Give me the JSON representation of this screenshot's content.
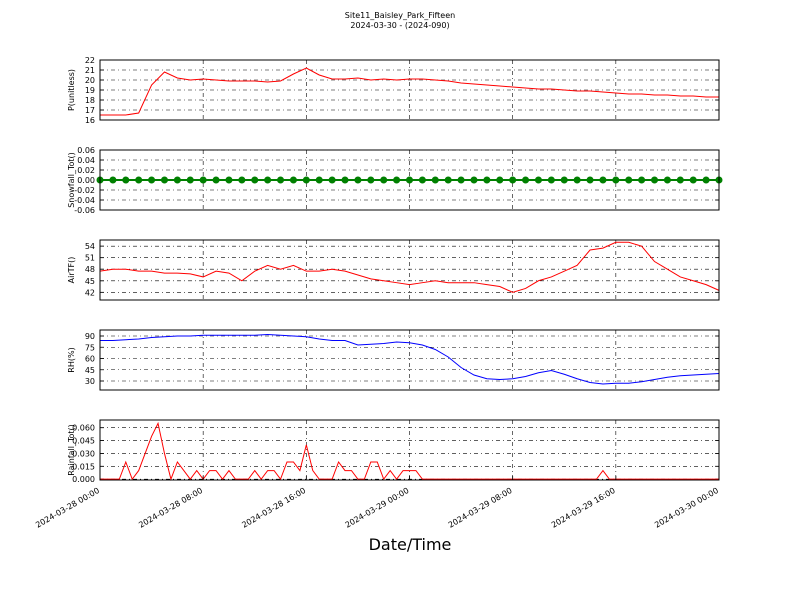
{
  "title": "Site11_Baisley_Park_Fifteen",
  "subtitle": "2024-03-30 - (2024-090)",
  "xlabel": "Date/Time",
  "xlim": [
    "2024-03-28 00:00",
    "2024-03-30 00:00"
  ],
  "xticks": [
    "2024-03-28 00:00",
    "2024-03-28 08:00",
    "2024-03-28 16:00",
    "2024-03-29 00:00",
    "2024-03-29 08:00",
    "2024-03-29 16:00",
    "2024-03-30 00:00"
  ],
  "chart_data": [
    {
      "type": "line",
      "ylabel": "P(unitless)",
      "color": "#ff0000",
      "grid": true,
      "markers": false,
      "ylim": [
        16,
        22
      ],
      "yticks": [
        16,
        17,
        18,
        19,
        20,
        21,
        22
      ],
      "x": [
        "2024-03-28 00:00",
        "2024-03-28 01:00",
        "2024-03-28 02:00",
        "2024-03-28 03:00",
        "2024-03-28 04:00",
        "2024-03-28 05:00",
        "2024-03-28 06:00",
        "2024-03-28 07:00",
        "2024-03-28 08:00",
        "2024-03-28 09:00",
        "2024-03-28 10:00",
        "2024-03-28 11:00",
        "2024-03-28 12:00",
        "2024-03-28 13:00",
        "2024-03-28 14:00",
        "2024-03-28 15:00",
        "2024-03-28 16:00",
        "2024-03-28 17:00",
        "2024-03-28 18:00",
        "2024-03-28 19:00",
        "2024-03-28 20:00",
        "2024-03-28 21:00",
        "2024-03-28 22:00",
        "2024-03-28 23:00",
        "2024-03-29 00:00",
        "2024-03-29 01:00",
        "2024-03-29 02:00",
        "2024-03-29 03:00",
        "2024-03-29 04:00",
        "2024-03-29 05:00",
        "2024-03-29 06:00",
        "2024-03-29 07:00",
        "2024-03-29 08:00",
        "2024-03-29 09:00",
        "2024-03-29 10:00",
        "2024-03-29 11:00",
        "2024-03-29 12:00",
        "2024-03-29 13:00",
        "2024-03-29 14:00",
        "2024-03-29 15:00",
        "2024-03-29 16:00",
        "2024-03-29 17:00",
        "2024-03-29 18:00",
        "2024-03-29 19:00",
        "2024-03-29 20:00",
        "2024-03-29 21:00",
        "2024-03-29 22:00",
        "2024-03-29 23:00",
        "2024-03-30 00:00"
      ],
      "values": [
        16.5,
        16.5,
        16.5,
        16.7,
        19.5,
        20.8,
        20.2,
        20.0,
        20.1,
        20.0,
        19.9,
        19.9,
        19.9,
        19.8,
        19.9,
        20.6,
        21.2,
        20.5,
        20.1,
        20.1,
        20.2,
        20.0,
        20.1,
        20.0,
        20.1,
        20.1,
        20.0,
        19.9,
        19.7,
        19.6,
        19.5,
        19.4,
        19.3,
        19.2,
        19.1,
        19.1,
        19.0,
        18.9,
        18.9,
        18.8,
        18.7,
        18.6,
        18.6,
        18.5,
        18.5,
        18.4,
        18.4,
        18.3,
        18.3
      ]
    },
    {
      "type": "line",
      "ylabel": "Snowfall_Tot()",
      "color": "#008000",
      "grid": true,
      "markers": true,
      "ylim": [
        -0.06,
        0.06
      ],
      "yticks": [
        -0.06,
        -0.04,
        -0.02,
        {
          "value": 0,
          "label": "0.00"
        },
        0.02,
        0.04,
        0.06
      ],
      "x": [
        "2024-03-28 00:00",
        "2024-03-28 01:00",
        "2024-03-28 02:00",
        "2024-03-28 03:00",
        "2024-03-28 04:00",
        "2024-03-28 05:00",
        "2024-03-28 06:00",
        "2024-03-28 07:00",
        "2024-03-28 08:00",
        "2024-03-28 09:00",
        "2024-03-28 10:00",
        "2024-03-28 11:00",
        "2024-03-28 12:00",
        "2024-03-28 13:00",
        "2024-03-28 14:00",
        "2024-03-28 15:00",
        "2024-03-28 16:00",
        "2024-03-28 17:00",
        "2024-03-28 18:00",
        "2024-03-28 19:00",
        "2024-03-28 20:00",
        "2024-03-28 21:00",
        "2024-03-28 22:00",
        "2024-03-28 23:00",
        "2024-03-29 00:00",
        "2024-03-29 01:00",
        "2024-03-29 02:00",
        "2024-03-29 03:00",
        "2024-03-29 04:00",
        "2024-03-29 05:00",
        "2024-03-29 06:00",
        "2024-03-29 07:00",
        "2024-03-29 08:00",
        "2024-03-29 09:00",
        "2024-03-29 10:00",
        "2024-03-29 11:00",
        "2024-03-29 12:00",
        "2024-03-29 13:00",
        "2024-03-29 14:00",
        "2024-03-29 15:00",
        "2024-03-29 16:00",
        "2024-03-29 17:00",
        "2024-03-29 18:00",
        "2024-03-29 19:00",
        "2024-03-29 20:00",
        "2024-03-29 21:00",
        "2024-03-29 22:00",
        "2024-03-29 23:00",
        "2024-03-30 00:00"
      ],
      "values": [
        0,
        0,
        0,
        0,
        0,
        0,
        0,
        0,
        0,
        0,
        0,
        0,
        0,
        0,
        0,
        0,
        0,
        0,
        0,
        0,
        0,
        0,
        0,
        0,
        0,
        0,
        0,
        0,
        0,
        0,
        0,
        0,
        0,
        0,
        0,
        0,
        0,
        0,
        0,
        0,
        0,
        0,
        0,
        0,
        0,
        0,
        0,
        0,
        0
      ]
    },
    {
      "type": "line",
      "ylabel": "AirTF()",
      "color": "#ff0000",
      "grid": true,
      "markers": false,
      "ylim": [
        40,
        55.6
      ],
      "yticks": [
        42,
        45,
        48,
        51,
        54
      ],
      "x": [
        "2024-03-28 00:00",
        "2024-03-28 01:00",
        "2024-03-28 02:00",
        "2024-03-28 03:00",
        "2024-03-28 04:00",
        "2024-03-28 05:00",
        "2024-03-28 06:00",
        "2024-03-28 07:00",
        "2024-03-28 08:00",
        "2024-03-28 09:00",
        "2024-03-28 10:00",
        "2024-03-28 11:00",
        "2024-03-28 12:00",
        "2024-03-28 13:00",
        "2024-03-28 14:00",
        "2024-03-28 15:00",
        "2024-03-28 16:00",
        "2024-03-28 17:00",
        "2024-03-28 18:00",
        "2024-03-28 19:00",
        "2024-03-28 20:00",
        "2024-03-28 21:00",
        "2024-03-28 22:00",
        "2024-03-28 23:00",
        "2024-03-29 00:00",
        "2024-03-29 01:00",
        "2024-03-29 02:00",
        "2024-03-29 03:00",
        "2024-03-29 04:00",
        "2024-03-29 05:00",
        "2024-03-29 06:00",
        "2024-03-29 07:00",
        "2024-03-29 08:00",
        "2024-03-29 09:00",
        "2024-03-29 10:00",
        "2024-03-29 11:00",
        "2024-03-29 12:00",
        "2024-03-29 13:00",
        "2024-03-29 14:00",
        "2024-03-29 15:00",
        "2024-03-29 16:00",
        "2024-03-29 17:00",
        "2024-03-29 18:00",
        "2024-03-29 19:00",
        "2024-03-29 20:00",
        "2024-03-29 21:00",
        "2024-03-29 22:00",
        "2024-03-29 23:00",
        "2024-03-30 00:00"
      ],
      "values": [
        47.5,
        48,
        48,
        47.5,
        47.5,
        47,
        47,
        46.8,
        46,
        47.5,
        47,
        45,
        47.5,
        49,
        48,
        49,
        47.5,
        47.5,
        48,
        47.5,
        46.5,
        45.5,
        45,
        44.5,
        44,
        44.5,
        45,
        44.5,
        44.5,
        44.5,
        44,
        43.5,
        42,
        43,
        45,
        46,
        47.5,
        49,
        53,
        53.5,
        55,
        55,
        54,
        50,
        48,
        46,
        45,
        44,
        42.5
      ]
    },
    {
      "type": "line",
      "ylabel": "RH(%)",
      "color": "#0000ff",
      "grid": true,
      "markers": false,
      "ylim": [
        18,
        98
      ],
      "yticks": [
        30,
        45,
        60,
        75,
        90
      ],
      "x": [
        "2024-03-28 00:00",
        "2024-03-28 01:00",
        "2024-03-28 02:00",
        "2024-03-28 03:00",
        "2024-03-28 04:00",
        "2024-03-28 05:00",
        "2024-03-28 06:00",
        "2024-03-28 07:00",
        "2024-03-28 08:00",
        "2024-03-28 09:00",
        "2024-03-28 10:00",
        "2024-03-28 11:00",
        "2024-03-28 12:00",
        "2024-03-28 13:00",
        "2024-03-28 14:00",
        "2024-03-28 15:00",
        "2024-03-28 16:00",
        "2024-03-28 17:00",
        "2024-03-28 18:00",
        "2024-03-28 19:00",
        "2024-03-28 20:00",
        "2024-03-28 21:00",
        "2024-03-28 22:00",
        "2024-03-28 23:00",
        "2024-03-29 00:00",
        "2024-03-29 01:00",
        "2024-03-29 02:00",
        "2024-03-29 03:00",
        "2024-03-29 04:00",
        "2024-03-29 05:00",
        "2024-03-29 06:00",
        "2024-03-29 07:00",
        "2024-03-29 08:00",
        "2024-03-29 09:00",
        "2024-03-29 10:00",
        "2024-03-29 11:00",
        "2024-03-29 12:00",
        "2024-03-29 13:00",
        "2024-03-29 14:00",
        "2024-03-29 15:00",
        "2024-03-29 16:00",
        "2024-03-29 17:00",
        "2024-03-29 18:00",
        "2024-03-29 19:00",
        "2024-03-29 20:00",
        "2024-03-29 21:00",
        "2024-03-29 22:00",
        "2024-03-29 23:00",
        "2024-03-30 00:00"
      ],
      "values": [
        84,
        84,
        85,
        86,
        88,
        89,
        90,
        90,
        91,
        91,
        91,
        91,
        91,
        92,
        91,
        90,
        89,
        86,
        84,
        84,
        78,
        79,
        80,
        82,
        81,
        78,
        72,
        62,
        48,
        38,
        33,
        32,
        33,
        36,
        41,
        44,
        39,
        33,
        28,
        26,
        27,
        27,
        29,
        32,
        35,
        37,
        38,
        39,
        40
      ]
    },
    {
      "type": "line",
      "ylabel": "Rainfall_Tot()",
      "color": "#ff0000",
      "grid": true,
      "markers": false,
      "ylim": [
        -0.001,
        0.069
      ],
      "yticks": [
        {
          "value": 0,
          "label": "0.000"
        },
        {
          "value": 0.015,
          "label": "0.015"
        },
        {
          "value": 0.03,
          "label": "0.030"
        },
        {
          "value": 0.045,
          "label": "0.045"
        },
        {
          "value": 0.06,
          "label": "0.060"
        }
      ],
      "x": [
        "2024-03-28 00:00",
        "2024-03-28 00:30",
        "2024-03-28 01:00",
        "2024-03-28 01:30",
        "2024-03-28 02:00",
        "2024-03-28 02:30",
        "2024-03-28 03:00",
        "2024-03-28 03:30",
        "2024-03-28 04:00",
        "2024-03-28 04:30",
        "2024-03-28 05:00",
        "2024-03-28 05:30",
        "2024-03-28 06:00",
        "2024-03-28 06:30",
        "2024-03-28 07:00",
        "2024-03-28 07:30",
        "2024-03-28 08:00",
        "2024-03-28 08:30",
        "2024-03-28 09:00",
        "2024-03-28 09:30",
        "2024-03-28 10:00",
        "2024-03-28 10:30",
        "2024-03-28 11:00",
        "2024-03-28 11:30",
        "2024-03-28 12:00",
        "2024-03-28 12:30",
        "2024-03-28 13:00",
        "2024-03-28 13:30",
        "2024-03-28 14:00",
        "2024-03-28 14:30",
        "2024-03-28 15:00",
        "2024-03-28 15:30",
        "2024-03-28 16:00",
        "2024-03-28 16:30",
        "2024-03-28 17:00",
        "2024-03-28 17:30",
        "2024-03-28 18:00",
        "2024-03-28 18:30",
        "2024-03-28 19:00",
        "2024-03-28 19:30",
        "2024-03-28 20:00",
        "2024-03-28 20:30",
        "2024-03-28 21:00",
        "2024-03-28 21:30",
        "2024-03-28 22:00",
        "2024-03-28 22:30",
        "2024-03-28 23:00",
        "2024-03-28 23:30",
        "2024-03-29 00:00",
        "2024-03-29 00:30",
        "2024-03-29 01:00",
        "2024-03-29 14:30",
        "2024-03-29 15:00",
        "2024-03-29 15:30",
        "2024-03-30 00:00"
      ],
      "values": [
        0,
        0,
        0,
        0,
        0.02,
        0,
        0.01,
        0.03,
        0.05,
        0.065,
        0.03,
        0,
        0.02,
        0.01,
        0,
        0.01,
        0,
        0.01,
        0.01,
        0,
        0.01,
        0,
        0,
        0,
        0.01,
        0,
        0.01,
        0.01,
        0,
        0.02,
        0.02,
        0.01,
        0.04,
        0.01,
        0,
        0,
        0,
        0.02,
        0.01,
        0.01,
        0,
        0,
        0.02,
        0.02,
        0,
        0.01,
        0,
        0.01,
        0.01,
        0.01,
        0,
        0,
        0.01,
        0,
        0
      ]
    }
  ]
}
